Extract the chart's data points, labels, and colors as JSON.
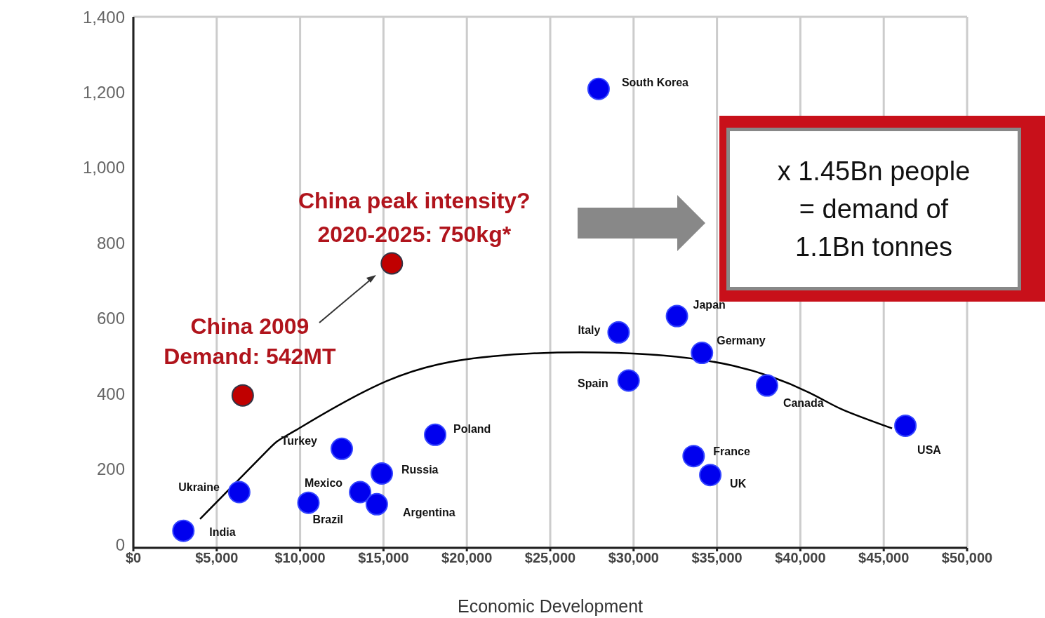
{
  "chart_data": {
    "type": "scatter",
    "xlabel": "Economic Development",
    "xlim": [
      0,
      50000
    ],
    "xticks": [
      {
        "value": 0,
        "label": "$0"
      },
      {
        "value": 5000,
        "label": "$5,000"
      },
      {
        "value": 10000,
        "label": "$10,000"
      },
      {
        "value": 15000,
        "label": "$15,000"
      },
      {
        "value": 20000,
        "label": "$20,000"
      },
      {
        "value": 25000,
        "label": "$25,000"
      },
      {
        "value": 30000,
        "label": "$30,000"
      },
      {
        "value": 35000,
        "label": "$35,000"
      },
      {
        "value": 40000,
        "label": "$40,000"
      },
      {
        "value": 45000,
        "label": "$45,000"
      },
      {
        "value": 50000,
        "label": "$50,000"
      }
    ],
    "ylim": [
      0,
      1400
    ],
    "yticks": [
      0,
      200,
      400,
      600,
      800,
      {
        "value": 1000,
        "label": "1,000"
      },
      {
        "value": 1200,
        "label": "1,200"
      },
      {
        "value": 1400,
        "label": "1,400"
      }
    ],
    "grid": true,
    "marker": "circle",
    "series": [
      {
        "color": "#0000ee",
        "x": [
          3000,
          6350,
          10500,
          12500,
          13600,
          14600,
          14900,
          18100,
          27900,
          29100,
          29700,
          32600,
          34100,
          33600,
          34600,
          38000,
          46300
        ],
        "values": [
          45,
          147,
          119,
          261,
          147,
          115,
          196,
          298,
          1210,
          568,
          441,
          611,
          514,
          242,
          192,
          428,
          322
        ]
      },
      {
        "color": "#c00000",
        "x": [
          6560,
          15500
        ],
        "values": [
          402,
          750
        ]
      },
      {
        "type": "line",
        "color": "#000000",
        "marker": "none",
        "x": [
          4000,
          8000,
          9700,
          15200,
          21500,
          29000,
          36000,
          40500,
          42500,
          45500
        ],
        "values": [
          76,
          255,
          309,
          440,
          505,
          514,
          480,
          410,
          365,
          315
        ]
      }
    ],
    "annotations": [
      {
        "text": "India",
        "x": 3000,
        "y": 45
      },
      {
        "text": "Ukraine",
        "x": 6350,
        "y": 147
      },
      {
        "text": "Brazil",
        "x": 10500,
        "y": 119
      },
      {
        "text": "Turkey",
        "x": 12500,
        "y": 261
      },
      {
        "text": "Mexico",
        "x": 13600,
        "y": 147
      },
      {
        "text": "Argentina",
        "x": 14600,
        "y": 115
      },
      {
        "text": "Russia",
        "x": 14900,
        "y": 196
      },
      {
        "text": "Poland",
        "x": 18100,
        "y": 298
      },
      {
        "text": "South Korea",
        "x": 27900,
        "y": 1210
      },
      {
        "text": "Italy",
        "x": 29100,
        "y": 568
      },
      {
        "text": "Spain",
        "x": 29700,
        "y": 441
      },
      {
        "text": "Japan",
        "x": 32600,
        "y": 611
      },
      {
        "text": "Germany",
        "x": 34100,
        "y": 514
      },
      {
        "text": "France",
        "x": 33600,
        "y": 242
      },
      {
        "text": "UK",
        "x": 34600,
        "y": 192
      },
      {
        "text": "Canada",
        "x": 38000,
        "y": 428
      },
      {
        "text": "USA",
        "x": 46300,
        "y": 322
      },
      {
        "text": "China peak intensity?\n2020-2025: 750kg*",
        "x": 15500,
        "y": 750
      },
      {
        "text": "China 2009\nDemand: 542MT",
        "x": 6560,
        "y": 402
      },
      "x 1.45Bn people\n= demand of\n1.1Bn tonnes"
    ]
  }
}
